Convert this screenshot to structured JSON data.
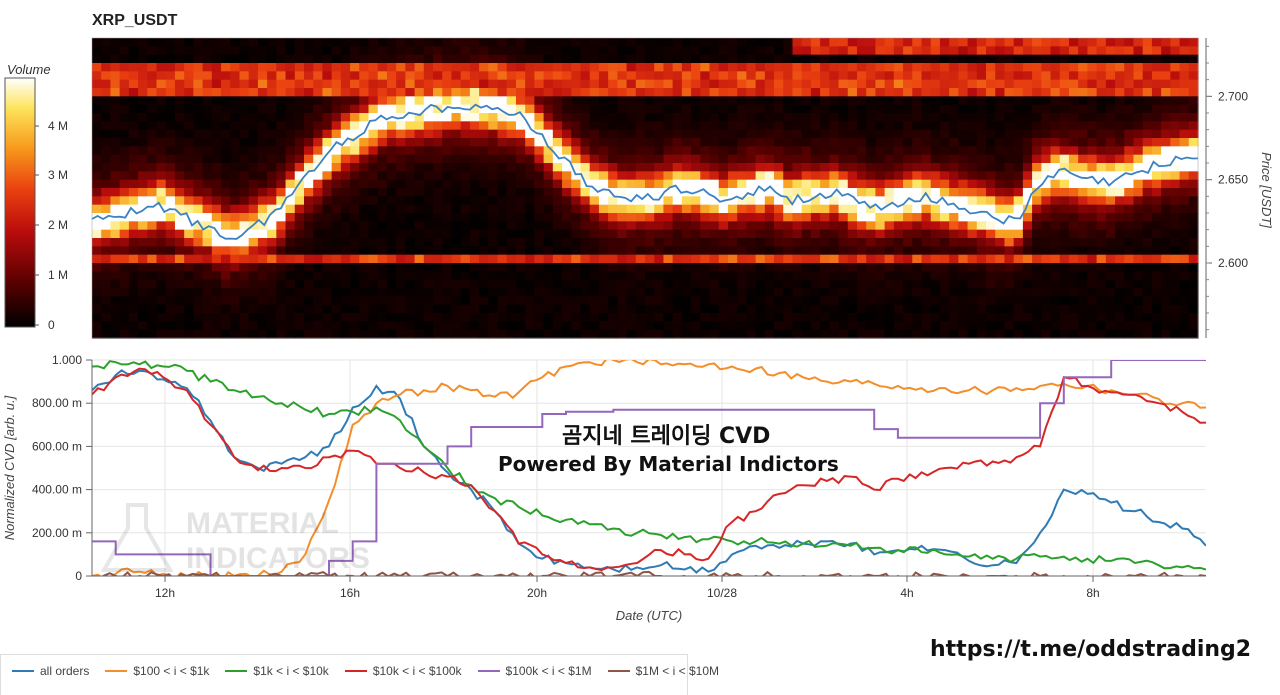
{
  "title": "XRP_USDT",
  "heatmap": {
    "colorbar_title": "Volume",
    "colorbar_ticks": [
      "4 M",
      "3 M",
      "2 M",
      "1 M",
      "0"
    ],
    "price_axis_label": "Price [USDT]",
    "price_ticks": [
      "2.700",
      "2.650",
      "2.600"
    ],
    "colors": [
      "#000000",
      "#3a0000",
      "#8b0000",
      "#c8120c",
      "#e83a10",
      "#f57a12",
      "#fbbf2a",
      "#fff38a",
      "#ffffff"
    ]
  },
  "cvd": {
    "y_axis_label": "Normalized CVD [arb. u.]",
    "y_ticks": [
      "1.000",
      "800.00 m",
      "600.00 m",
      "400.00 m",
      "200.00 m",
      "0"
    ],
    "x_axis_label": "Date (UTC)",
    "x_ticks": [
      "12h",
      "16h",
      "20h",
      "10/28",
      "4h",
      "8h"
    ]
  },
  "overlays": {
    "heading_korean": "곰지네 트레이딩 CVD",
    "heading_powered": "Powered By Material Indictors",
    "watermark_line1": "MATERIAL",
    "watermark_line2": "INDICATORS",
    "link": "https://t.me/oddstrading2"
  },
  "legend": [
    {
      "label": "all orders",
      "color": "#2f7bb5"
    },
    {
      "label": "$100 < i < $1k",
      "color": "#f28e2b"
    },
    {
      "label": "$1k < i < $10k",
      "color": "#2ca02c"
    },
    {
      "label": "$10k < i < $100k",
      "color": "#d62728"
    },
    {
      "label": "$100k < i < $1M",
      "color": "#9467bd"
    },
    {
      "label": "$1M < i < $10M",
      "color": "#8c564b"
    }
  ],
  "chart_data": [
    {
      "type": "heatmap",
      "title": "XRP_USDT",
      "ylabel": "Price [USDT]",
      "colorbar_label": "Volume",
      "colorbar_range": [
        0,
        5000000
      ],
      "ylim": [
        2.555,
        2.735
      ],
      "price_series_approx": [
        2.625,
        2.628,
        2.632,
        2.635,
        2.628,
        2.622,
        2.615,
        2.62,
        2.628,
        2.645,
        2.66,
        2.672,
        2.68,
        2.688,
        2.69,
        2.692,
        2.695,
        2.695,
        2.692,
        2.688,
        2.675,
        2.66,
        2.648,
        2.64,
        2.638,
        2.64,
        2.645,
        2.642,
        2.638,
        2.642,
        2.645,
        2.638,
        2.64,
        2.642,
        2.635,
        2.632,
        2.638,
        2.64,
        2.635,
        2.632,
        2.628,
        2.624,
        2.648,
        2.655,
        2.65,
        2.648,
        2.652,
        2.658,
        2.662,
        2.664
      ]
    },
    {
      "type": "line",
      "title": "",
      "xlabel": "Date (UTC)",
      "ylabel": "Normalized CVD [arb. u.]",
      "ylim": [
        0,
        1
      ],
      "x": [
        "10:30",
        "11:00",
        "11:30",
        "12:00",
        "12:30",
        "13:00",
        "13:30",
        "14:00",
        "14:30",
        "15:00",
        "15:30",
        "16:00",
        "16:30",
        "17:00",
        "17:30",
        "18:00",
        "18:30",
        "19:00",
        "19:30",
        "20:00",
        "20:30",
        "21:00",
        "21:30",
        "22:00",
        "22:30",
        "23:00",
        "23:30",
        "00:00",
        "00:30",
        "01:00",
        "01:30",
        "02:00",
        "02:30",
        "03:00",
        "03:30",
        "04:00",
        "04:30",
        "05:00",
        "05:30",
        "06:00",
        "06:30",
        "07:00",
        "07:30",
        "08:00",
        "08:30",
        "09:00",
        "09:30",
        "10:00"
      ],
      "series": [
        {
          "name": "all orders",
          "values": [
            0.86,
            0.93,
            0.95,
            0.91,
            0.87,
            0.72,
            0.55,
            0.5,
            0.52,
            0.55,
            0.6,
            0.78,
            0.88,
            0.82,
            0.6,
            0.48,
            0.4,
            0.3,
            0.15,
            0.08,
            0.06,
            0.04,
            0.03,
            0.04,
            0.05,
            0.03,
            0.02,
            0.1,
            0.14,
            0.13,
            0.15,
            0.16,
            0.15,
            0.1,
            0.12,
            0.14,
            0.12,
            0.07,
            0.05,
            0.06,
            0.2,
            0.4,
            0.38,
            0.34,
            0.3,
            0.25,
            0.22,
            0.14
          ]
        },
        {
          "name": "$100 < i < $1k",
          "values": [
            0.0,
            0.01,
            0.02,
            0.01,
            0.0,
            0.0,
            0.0,
            0.0,
            0.02,
            0.1,
            0.35,
            0.7,
            0.8,
            0.84,
            0.86,
            0.88,
            0.86,
            0.83,
            0.85,
            0.92,
            0.97,
            0.99,
            1.0,
            0.99,
            0.98,
            0.98,
            0.98,
            0.97,
            0.96,
            0.94,
            0.92,
            0.9,
            0.9,
            0.89,
            0.88,
            0.87,
            0.87,
            0.86,
            0.86,
            0.87,
            0.88,
            0.89,
            0.88,
            0.86,
            0.84,
            0.82,
            0.8,
            0.78
          ]
        },
        {
          "name": "$1k < i < $10k",
          "values": [
            0.97,
            0.99,
            0.98,
            0.97,
            0.95,
            0.9,
            0.86,
            0.83,
            0.8,
            0.77,
            0.75,
            0.76,
            0.78,
            0.72,
            0.6,
            0.5,
            0.42,
            0.36,
            0.32,
            0.28,
            0.26,
            0.24,
            0.22,
            0.2,
            0.19,
            0.18,
            0.17,
            0.16,
            0.16,
            0.15,
            0.15,
            0.14,
            0.14,
            0.13,
            0.12,
            0.11,
            0.1,
            0.09,
            0.08,
            0.08,
            0.09,
            0.09,
            0.08,
            0.07,
            0.06,
            0.05,
            0.04,
            0.03
          ]
        },
        {
          "name": "$10k < i < $100k",
          "values": [
            0.84,
            0.92,
            0.96,
            0.92,
            0.86,
            0.7,
            0.55,
            0.49,
            0.5,
            0.5,
            0.55,
            0.58,
            0.52,
            0.5,
            0.48,
            0.46,
            0.42,
            0.3,
            0.15,
            0.1,
            0.06,
            0.04,
            0.04,
            0.06,
            0.12,
            0.1,
            0.08,
            0.25,
            0.3,
            0.38,
            0.42,
            0.44,
            0.46,
            0.4,
            0.45,
            0.48,
            0.5,
            0.52,
            0.53,
            0.55,
            0.6,
            0.92,
            0.88,
            0.85,
            0.84,
            0.8,
            0.76,
            0.71
          ]
        },
        {
          "name": "$100k < i < $1M",
          "values": [
            0.16,
            0.1,
            0.1,
            0.1,
            0.1,
            0.0,
            0.0,
            0.0,
            0.0,
            0.0,
            0.07,
            0.16,
            0.52,
            0.52,
            0.52,
            0.6,
            0.69,
            0.69,
            0.69,
            0.75,
            0.76,
            0.76,
            0.77,
            0.77,
            0.77,
            0.77,
            0.77,
            0.77,
            0.77,
            0.77,
            0.77,
            0.77,
            0.77,
            0.68,
            0.64,
            0.64,
            0.64,
            0.64,
            0.64,
            0.64,
            0.8,
            0.92,
            0.92,
            1.0,
            1.0,
            1.0,
            1.0,
            1.0
          ]
        },
        {
          "name": "$1M < i < $10M",
          "values": [
            0.0,
            0.0,
            0.0,
            0.0,
            0.0,
            0.0,
            0.0,
            0.0,
            0.0,
            0.0,
            0.0,
            0.0,
            0.0,
            0.0,
            0.0,
            0.0,
            0.0,
            0.0,
            0.0,
            0.0,
            0.0,
            0.0,
            0.0,
            0.0,
            0.0,
            0.0,
            0.0,
            0.0,
            0.0,
            0.0,
            0.0,
            0.0,
            0.0,
            0.0,
            0.0,
            0.0,
            0.0,
            0.0,
            0.0,
            0.0,
            0.0,
            0.0,
            0.0,
            0.0,
            0.0,
            0.0,
            0.0,
            0.0
          ]
        }
      ]
    }
  ]
}
